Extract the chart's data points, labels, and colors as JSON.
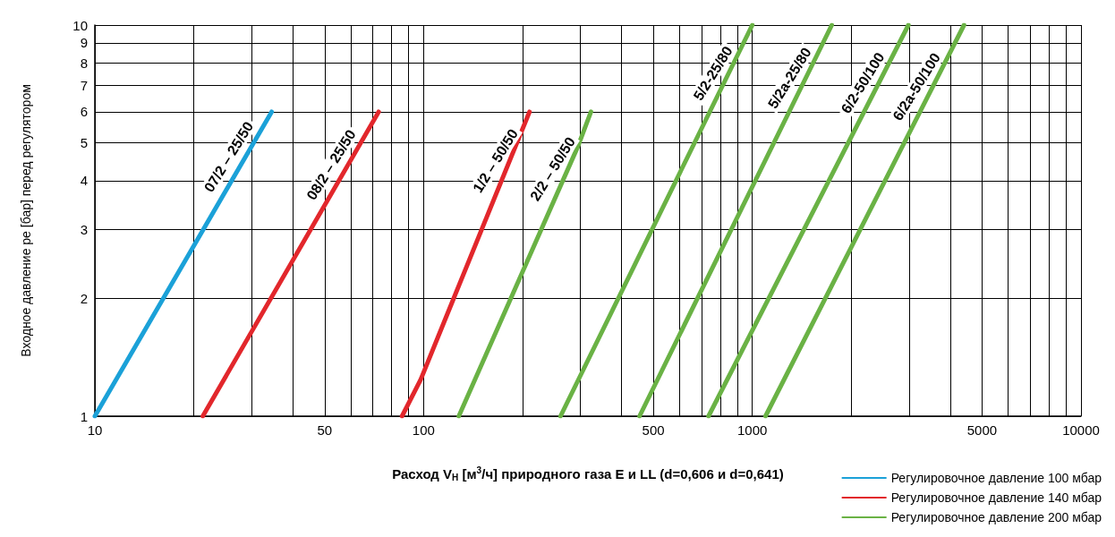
{
  "chart_data": {
    "type": "line",
    "xlabel": "Расход V$_{Н}$ [м$^{3}$/ч] природного газа E и LL (d=0,606 и d=0,641)",
    "ylabel": "Входное давление pe [бар] перед регулятором",
    "log": "xy",
    "grid": true,
    "legend": "bottom right",
    "marker": "none",
    "line_style": "solid",
    "xlim": [
      10,
      10000
    ],
    "ylim": [
      1,
      10
    ],
    "xticks": [
      10,
      {
        "value": 20,
        "label": null
      },
      {
        "value": 30,
        "label": null
      },
      {
        "value": 40,
        "label": null
      },
      50,
      {
        "value": 60,
        "label": null
      },
      {
        "value": 70,
        "label": null
      },
      {
        "value": 80,
        "label": null
      },
      {
        "value": 90,
        "label": null
      },
      100,
      {
        "value": 200,
        "label": null
      },
      {
        "value": 300,
        "label": null
      },
      {
        "value": 400,
        "label": null
      },
      500,
      {
        "value": 600,
        "label": null
      },
      {
        "value": 700,
        "label": null
      },
      {
        "value": 800,
        "label": null
      },
      {
        "value": 900,
        "label": null
      },
      1000,
      {
        "value": 2000,
        "label": null
      },
      {
        "value": 3000,
        "label": null
      },
      {
        "value": 4000,
        "label": null
      },
      5000,
      {
        "value": 6000,
        "label": null
      },
      {
        "value": 7000,
        "label": null
      },
      {
        "value": 8000,
        "label": null
      },
      {
        "value": 9000,
        "label": null
      },
      10000
    ],
    "yticks": [
      1,
      2,
      3,
      4,
      5,
      6,
      7,
      8,
      9,
      10
    ],
    "series": [
      {
        "name": "Регулировочное давление 100 мбар",
        "color": "#1ba1d8",
        "x": [
          10,
          34.5
        ],
        "values": [
          1,
          6
        ]
      },
      {
        "name": "Регулировочное давление 140 мбар",
        "color": "#e2272c",
        "x": [
          21.3,
          73
        ],
        "values": [
          1,
          6
        ]
      },
      {
        "color": "#e2272c",
        "x": [
          86,
          98,
          210
        ],
        "values": [
          1,
          1.24,
          6
        ]
      },
      {
        "name": "Регулировочное давление 200 мбар",
        "color": "#6ab245",
        "x": [
          128,
          295,
          323
        ],
        "values": [
          1,
          4.9,
          6
        ]
      },
      {
        "color": "#6ab245",
        "x": [
          261,
          1000
        ],
        "values": [
          1,
          10
        ]
      },
      {
        "color": "#6ab245",
        "x": [
          454,
          1745
        ],
        "values": [
          1,
          10
        ]
      },
      {
        "color": "#6ab245",
        "x": [
          736,
          2985
        ],
        "values": [
          1,
          10
        ]
      },
      {
        "color": "#6ab245",
        "x": [
          1097,
          4407
        ],
        "values": [
          1,
          10
        ]
      }
    ],
    "annotations": [
      {
        "text": "07/2 – 25/50",
        "x": 27.8,
        "y": 4.4
      },
      {
        "text": "08/2 – 25/50",
        "x": 57,
        "y": 4.2
      },
      {
        "text": "1/2 – 50/50",
        "x": 180,
        "y": 4.3
      },
      {
        "text": "2/2 – 50/50",
        "x": 269,
        "y": 4.1
      },
      {
        "text": "5/2-25/80",
        "x": 826,
        "y": 7.2
      },
      {
        "text": "5/2a-25/80",
        "x": 1414,
        "y": 7
      },
      {
        "text": "6/2-50/100",
        "x": 2360,
        "y": 6.8
      },
      {
        "text": "6/2a-50/100",
        "x": 3440,
        "y": 6.65
      }
    ]
  }
}
